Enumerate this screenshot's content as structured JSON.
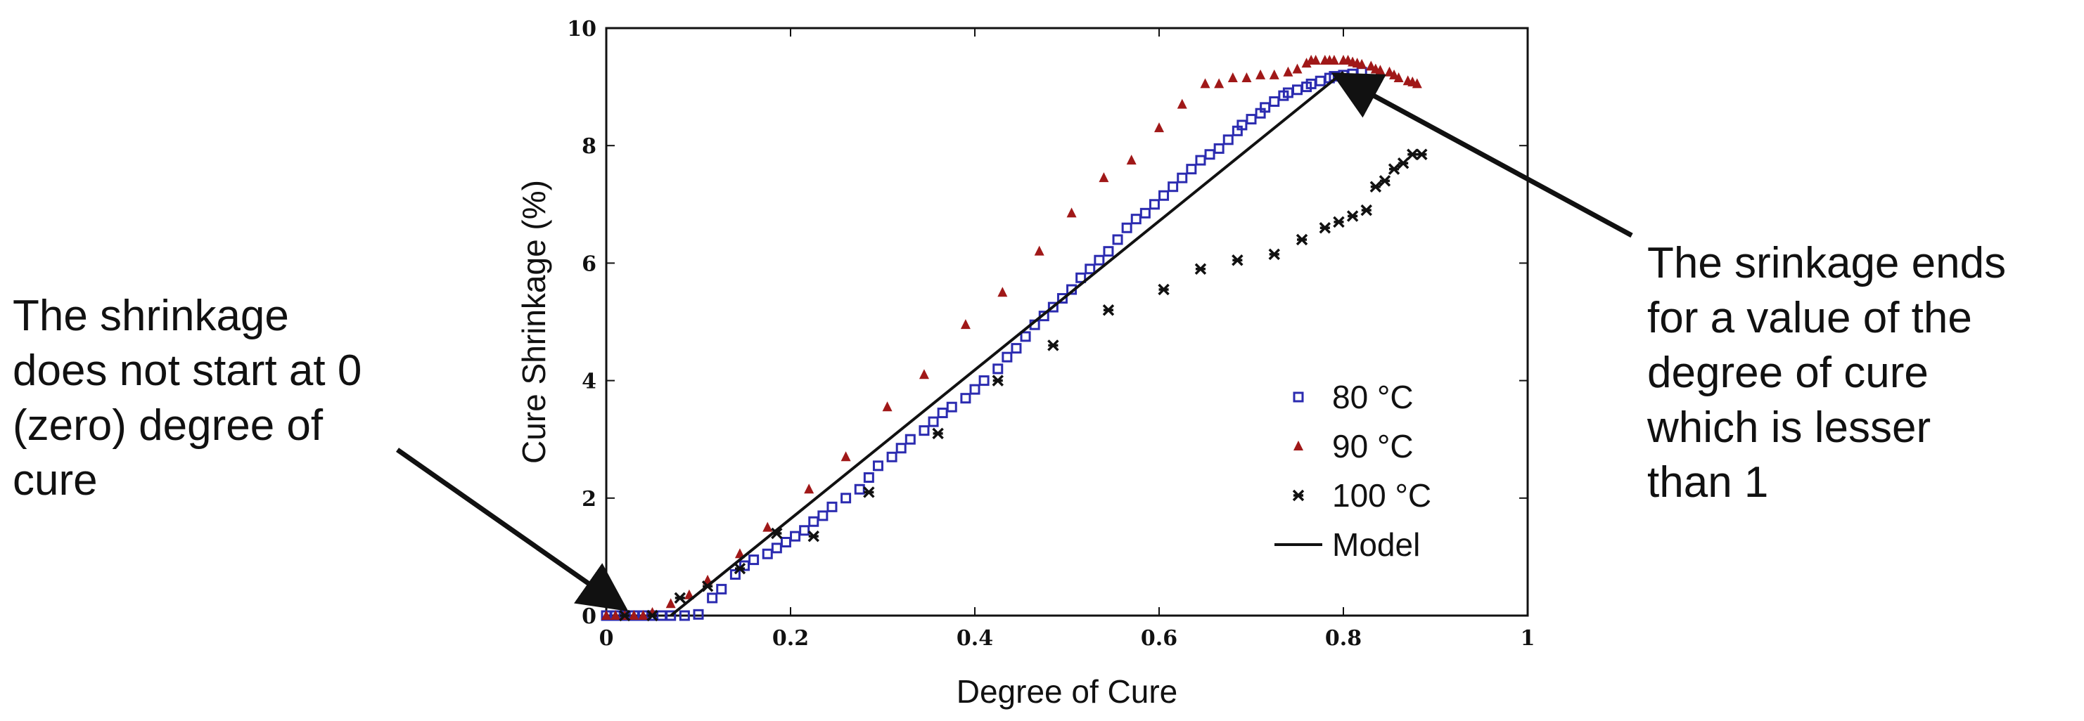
{
  "chart_data": {
    "type": "scatter",
    "xlabel": "Degree of Cure",
    "ylabel": "Cure Shrinkage (%)",
    "xlim": [
      0,
      1
    ],
    "ylim": [
      0,
      10
    ],
    "xticks": [
      "0",
      "0.2",
      "0.4",
      "0.6",
      "0.8",
      "1"
    ],
    "yticks": [
      "0",
      "2",
      "4",
      "6",
      "8",
      "10"
    ],
    "grid": false,
    "legend_position": "bottom-right",
    "series": [
      {
        "name": "80   °C",
        "marker": "open-square",
        "color": "#2b2bb0",
        "x": [
          0.0,
          0.01,
          0.02,
          0.03,
          0.04,
          0.05,
          0.06,
          0.07,
          0.085,
          0.1,
          0.115,
          0.125,
          0.14,
          0.15,
          0.16,
          0.175,
          0.185,
          0.195,
          0.205,
          0.215,
          0.225,
          0.235,
          0.245,
          0.26,
          0.275,
          0.285,
          0.295,
          0.31,
          0.32,
          0.33,
          0.345,
          0.355,
          0.365,
          0.375,
          0.39,
          0.4,
          0.41,
          0.425,
          0.435,
          0.445,
          0.455,
          0.465,
          0.475,
          0.485,
          0.495,
          0.505,
          0.515,
          0.525,
          0.535,
          0.545,
          0.555,
          0.565,
          0.575,
          0.585,
          0.595,
          0.605,
          0.615,
          0.625,
          0.635,
          0.645,
          0.655,
          0.665,
          0.675,
          0.685,
          0.69,
          0.7,
          0.71,
          0.715,
          0.725,
          0.735,
          0.74,
          0.75,
          0.76,
          0.765,
          0.775,
          0.785,
          0.79,
          0.8,
          0.81,
          0.82
        ],
        "y": [
          0.0,
          0.0,
          0.0,
          0.0,
          0.0,
          0.0,
          0.0,
          0.0,
          0.0,
          0.02,
          0.3,
          0.45,
          0.7,
          0.85,
          0.95,
          1.05,
          1.15,
          1.25,
          1.35,
          1.45,
          1.6,
          1.7,
          1.85,
          2.0,
          2.15,
          2.35,
          2.55,
          2.7,
          2.85,
          3.0,
          3.15,
          3.3,
          3.45,
          3.55,
          3.7,
          3.85,
          4.0,
          4.2,
          4.4,
          4.55,
          4.75,
          4.95,
          5.1,
          5.25,
          5.4,
          5.55,
          5.75,
          5.9,
          6.05,
          6.2,
          6.4,
          6.6,
          6.75,
          6.85,
          7.0,
          7.15,
          7.3,
          7.45,
          7.6,
          7.75,
          7.85,
          7.95,
          8.1,
          8.25,
          8.35,
          8.45,
          8.55,
          8.65,
          8.75,
          8.85,
          8.9,
          8.95,
          9.0,
          9.05,
          9.1,
          9.15,
          9.18,
          9.2,
          9.22,
          9.25
        ]
      },
      {
        "name": "90   °C",
        "marker": "filled-triangle",
        "color": "#a01818",
        "x": [
          0.0,
          0.01,
          0.02,
          0.03,
          0.04,
          0.05,
          0.07,
          0.09,
          0.11,
          0.145,
          0.175,
          0.22,
          0.26,
          0.305,
          0.345,
          0.39,
          0.43,
          0.47,
          0.505,
          0.54,
          0.57,
          0.6,
          0.625,
          0.65,
          0.665,
          0.68,
          0.695,
          0.71,
          0.725,
          0.74,
          0.75,
          0.76,
          0.765,
          0.77,
          0.78,
          0.785,
          0.79,
          0.8,
          0.805,
          0.81,
          0.815,
          0.82,
          0.83,
          0.835,
          0.84,
          0.85,
          0.855,
          0.86,
          0.87,
          0.875,
          0.88
        ],
        "y": [
          0.0,
          0.0,
          0.0,
          0.0,
          0.0,
          0.05,
          0.2,
          0.35,
          0.6,
          1.05,
          1.5,
          2.15,
          2.7,
          3.55,
          4.1,
          4.95,
          5.5,
          6.2,
          6.85,
          7.45,
          7.75,
          8.3,
          8.7,
          9.05,
          9.05,
          9.15,
          9.15,
          9.2,
          9.2,
          9.25,
          9.3,
          9.4,
          9.45,
          9.45,
          9.45,
          9.45,
          9.45,
          9.45,
          9.45,
          9.42,
          9.4,
          9.38,
          9.35,
          9.3,
          9.28,
          9.25,
          9.2,
          9.15,
          9.1,
          9.08,
          9.05
        ]
      },
      {
        "name": "100 °C",
        "marker": "asterisk",
        "color": "#111111",
        "x": [
          0.02,
          0.05,
          0.08,
          0.11,
          0.145,
          0.185,
          0.225,
          0.285,
          0.36,
          0.425,
          0.485,
          0.545,
          0.605,
          0.645,
          0.685,
          0.725,
          0.755,
          0.78,
          0.795,
          0.81,
          0.825,
          0.835,
          0.845,
          0.855,
          0.865,
          0.875,
          0.885
        ],
        "y": [
          0.0,
          0.0,
          0.3,
          0.5,
          0.8,
          1.4,
          1.35,
          2.1,
          3.1,
          4.0,
          4.6,
          5.2,
          5.55,
          5.9,
          6.05,
          6.15,
          6.4,
          6.6,
          6.7,
          6.8,
          6.9,
          7.3,
          7.4,
          7.6,
          7.7,
          7.85,
          7.85
        ]
      },
      {
        "name": "Model",
        "marker": "line",
        "color": "#111111",
        "x": [
          0.07,
          0.8
        ],
        "y": [
          0.0,
          9.25
        ]
      }
    ]
  },
  "annotations": {
    "left": [
      "The shrinkage",
      "does not start at 0",
      "(zero) degree of",
      "cure"
    ],
    "right": [
      "The srinkage ends",
      "for a value of the",
      "degree of cure",
      "which is lesser",
      "than 1"
    ]
  }
}
